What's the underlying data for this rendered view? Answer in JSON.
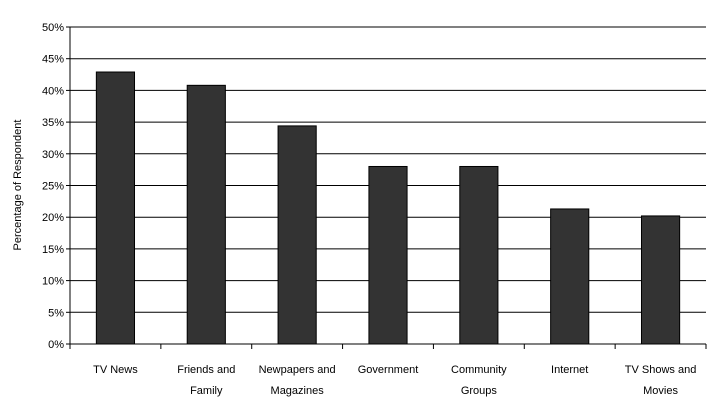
{
  "chart_data": {
    "type": "bar",
    "title": "",
    "xlabel": "",
    "ylabel": "Percentage of Respondent",
    "ylim": [
      0,
      50
    ],
    "yticks": [
      "0%",
      "5%",
      "10%",
      "15%",
      "20%",
      "25%",
      "30%",
      "35%",
      "40%",
      "45%",
      "50%"
    ],
    "y_tick_values": [
      0,
      5,
      10,
      15,
      20,
      25,
      30,
      35,
      40,
      45,
      50
    ],
    "categories": [
      [
        "TV News"
      ],
      [
        "Friends and",
        "Family"
      ],
      [
        "Newpapers and",
        "Magazines"
      ],
      [
        "Government"
      ],
      [
        "Community",
        "Groups"
      ],
      [
        "Internet"
      ],
      [
        "TV Shows and",
        "Movies"
      ]
    ],
    "values": [
      42.9,
      40.8,
      34.4,
      28.0,
      28.0,
      21.3,
      20.2
    ],
    "grid": true,
    "legend": "none",
    "bar_color": "#333333"
  }
}
